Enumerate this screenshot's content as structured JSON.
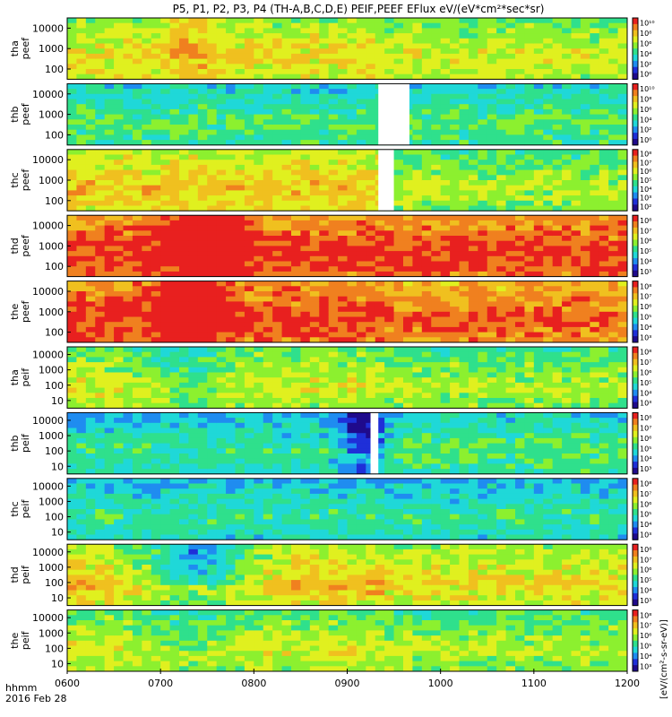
{
  "chart_data": {
    "type": "heatmap",
    "title": "P5, P1, P2, P3, P4 (TH-A,B,C,D,E) PEIF,PEEF EFlux eV/(eV*cm²*sec*sr)",
    "x_unit_label": "hhmm",
    "date_label": "2016 Feb 28",
    "x_tick_labels": [
      "0600",
      "0700",
      "0800",
      "0900",
      "1000",
      "1100",
      "1200"
    ],
    "x_range": [
      "06:00",
      "12:00"
    ],
    "colorbar_unit_label": "[eV/(cm²-s-sr-eV)]",
    "colors": {
      "scale": [
        "#1f0a8c",
        "#1f2fd8",
        "#1f8cf0",
        "#1fd8d8",
        "#2fe08c",
        "#8cf02f",
        "#e0f01f",
        "#f0c01f",
        "#f0801f",
        "#e8201f"
      ]
    },
    "panels": [
      {
        "label": "tha peef",
        "yscale": "log",
        "y_tick_labels": [
          "10000",
          "1000",
          "100"
        ],
        "cbar_tick_labels": [
          "10¹⁰",
          "10⁸",
          "10⁶",
          "10⁴",
          "10²",
          "10⁰"
        ],
        "base_level": 0.55,
        "features": [
          {
            "t": 0.21,
            "w": 0.04,
            "d": 0.15
          }
        ],
        "late_level_change": -0.05
      },
      {
        "label": "thb peef",
        "yscale": "log",
        "y_tick_labels": [
          "10000",
          "1000",
          "100"
        ],
        "cbar_tick_labels": [
          "10¹⁰",
          "10⁸",
          "10⁶",
          "10⁴",
          "10²",
          "10⁰"
        ],
        "base_level": 0.35,
        "features": [],
        "late_level_change": 0.0,
        "data_gap": {
          "from": "09:20",
          "to": "09:40"
        }
      },
      {
        "label": "thc peef",
        "yscale": "log",
        "y_tick_labels": [
          "10000",
          "1000",
          "100"
        ],
        "cbar_tick_labels": [
          "10⁸",
          "10⁷",
          "10⁶",
          "10⁵",
          "10⁴",
          "10³",
          "10²"
        ],
        "base_level": 0.6,
        "features": [],
        "late_level_change": -0.15,
        "data_gap": {
          "from": "09:20",
          "to": "09:30"
        }
      },
      {
        "label": "thd peef",
        "yscale": "log",
        "y_tick_labels": [
          "10000",
          "1000",
          "100"
        ],
        "cbar_tick_labels": [
          "10⁸",
          "10⁷",
          "10⁶",
          "10⁵",
          "10⁴",
          "10³"
        ],
        "base_level": 0.8,
        "features": [
          {
            "t": 0.24,
            "w": 0.06,
            "d": 0.4
          }
        ],
        "late_level_change": 0.0
      },
      {
        "label": "the peef",
        "yscale": "log",
        "y_tick_labels": [
          "10000",
          "1000",
          "100"
        ],
        "cbar_tick_labels": [
          "10⁸",
          "10⁷",
          "10⁶",
          "10⁵",
          "10⁴",
          "10³"
        ],
        "base_level": 0.8,
        "features": [
          {
            "t": 0.21,
            "w": 0.05,
            "d": 0.35
          }
        ],
        "late_level_change": -0.05
      },
      {
        "label": "tha peif",
        "yscale": "log",
        "y_tick_labels": [
          "10000",
          "1000",
          "100",
          "10"
        ],
        "cbar_tick_labels": [
          "10⁸",
          "10⁷",
          "10⁶",
          "10⁵",
          "10⁴",
          "10³"
        ],
        "base_level": 0.5,
        "features": [
          {
            "t": 0.2,
            "w": 0.08,
            "d": -0.15
          }
        ],
        "late_level_change": -0.05
      },
      {
        "label": "thb peif",
        "yscale": "log",
        "y_tick_labels": [
          "10000",
          "1000",
          "100",
          "10"
        ],
        "cbar_tick_labels": [
          "10⁸",
          "10⁷",
          "10⁶",
          "10⁵",
          "10⁴",
          "10³"
        ],
        "base_level": 0.3,
        "features": [
          {
            "t": 0.52,
            "w": 0.04,
            "d": -0.3
          }
        ],
        "late_level_change": 0.05,
        "data_gap": {
          "from": "09:15",
          "to": "09:20"
        }
      },
      {
        "label": "thc peif",
        "yscale": "log",
        "y_tick_labels": [
          "10000",
          "1000",
          "100",
          "10"
        ],
        "cbar_tick_labels": [
          "10⁸",
          "10⁷",
          "10⁶",
          "10⁵",
          "10⁴",
          "10³"
        ],
        "base_level": 0.3,
        "features": [],
        "late_level_change": 0.0
      },
      {
        "label": "thd peif",
        "yscale": "log",
        "y_tick_labels": [
          "10000",
          "1000",
          "100",
          "10"
        ],
        "cbar_tick_labels": [
          "10⁸",
          "10⁷",
          "10⁶",
          "10⁵",
          "10⁴",
          "10³"
        ],
        "base_level": 0.6,
        "features": [
          {
            "t": 0.22,
            "w": 0.1,
            "d": -0.35
          }
        ],
        "late_level_change": -0.05
      },
      {
        "label": "the peif",
        "yscale": "log",
        "y_tick_labels": [
          "10000",
          "1000",
          "100",
          "10"
        ],
        "cbar_tick_labels": [
          "10⁸",
          "10⁷",
          "10⁶",
          "10⁵",
          "10⁴",
          "10³"
        ],
        "base_level": 0.5,
        "features": [
          {
            "t": 0.2,
            "w": 0.08,
            "d": -0.1
          }
        ],
        "late_level_change": -0.05
      }
    ]
  }
}
